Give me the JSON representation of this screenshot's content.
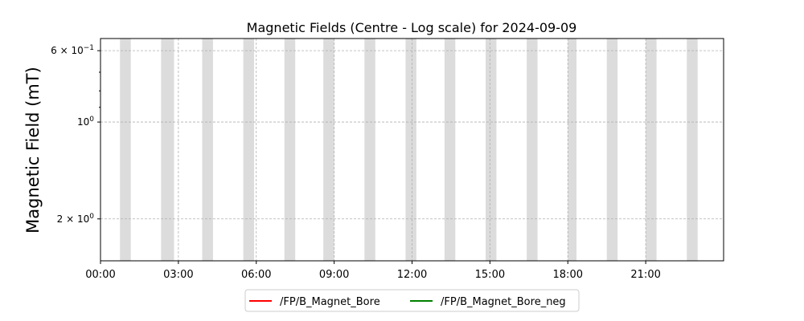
{
  "chart_data": {
    "type": "line",
    "title": "Magnetic Fields (Centre - Log scale) for 2024-09-09",
    "xlabel": "",
    "ylabel": "Magnetic Field (mT)",
    "x_range": [
      "00:00",
      "24:00"
    ],
    "x_ticks": [
      "00:00",
      "03:00",
      "06:00",
      "09:00",
      "12:00",
      "15:00",
      "18:00",
      "21:00"
    ],
    "y_scale": "log",
    "y_range": [
      0.55,
      2.7
    ],
    "y_ticks": [
      {
        "value": 0.6,
        "label_main": "6 × 10",
        "label_exp": "−1"
      },
      {
        "value": 1,
        "label_main": "10",
        "label_exp": "0"
      },
      {
        "value": 2,
        "label_main": "2 × 10",
        "label_exp": "0"
      }
    ],
    "y_minor_ticks": [
      0.7,
      0.8,
      0.9
    ],
    "grid": true,
    "shaded_intervals": [
      [
        "00:45",
        "01:10"
      ],
      [
        "02:20",
        "02:50"
      ],
      [
        "03:55",
        "04:20"
      ],
      [
        "05:30",
        "05:55"
      ],
      [
        "07:05",
        "07:30"
      ],
      [
        "08:35",
        "09:00"
      ],
      [
        "10:10",
        "10:35"
      ],
      [
        "11:45",
        "12:10"
      ],
      [
        "13:15",
        "13:40"
      ],
      [
        "14:50",
        "15:15"
      ],
      [
        "16:25",
        "16:50"
      ],
      [
        "18:00",
        "18:20"
      ],
      [
        "19:30",
        "19:55"
      ],
      [
        "21:00",
        "21:25"
      ],
      [
        "22:35",
        "23:00"
      ]
    ],
    "series": [
      {
        "name": "/FP/B_Magnet_Bore",
        "color": "#ff0000",
        "values": []
      },
      {
        "name": "/FP/B_Magnet_Bore_neg",
        "color": "#008000",
        "values": []
      }
    ],
    "legend_position": "bottom-center"
  }
}
